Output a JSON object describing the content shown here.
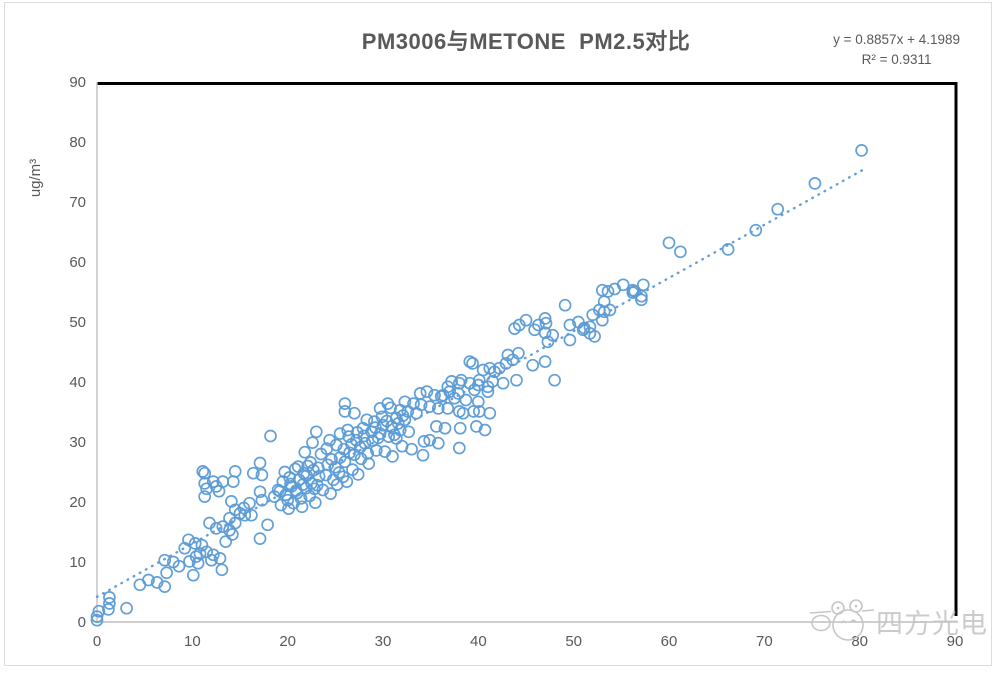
{
  "header": {
    "title": "PM3006与METONE  PM2.5对比",
    "equation": "y = 0.8857x + 4.1989",
    "r_squared": "R² = 0.9311"
  },
  "watermark": {
    "brand_text": "四方光电",
    "logo": "panda-mascot-icon"
  },
  "colors": {
    "marker": "#5B9BD5",
    "trendline": "#5B9BD5",
    "axis_line": "#BFBFBF",
    "tick_label": "#595959",
    "title_text": "#595959",
    "plot_border": "#000000",
    "watermark": "#C6C6C6",
    "outer_border": "#DCDCDC"
  },
  "chart_data": {
    "type": "scatter",
    "title": "PM3006与METONE  PM2.5对比",
    "xlabel": "",
    "ylabel": "ug/m³",
    "xlim": [
      0,
      90
    ],
    "ylim": [
      0,
      90
    ],
    "x_ticks": [
      0,
      10,
      20,
      30,
      40,
      50,
      60,
      70,
      80,
      90
    ],
    "y_ticks": [
      0,
      10,
      20,
      30,
      40,
      50,
      60,
      70,
      80,
      90
    ],
    "grid": false,
    "legend": false,
    "annotation": [
      "y = 0.8857x + 4.1989",
      "R² = 0.9311"
    ],
    "marker": {
      "shape": "open-circle",
      "radius": 5.5
    },
    "trendline": {
      "type": "linear",
      "slope": 0.8857,
      "intercept": 4.1989,
      "r2": 0.9311,
      "style": "dotted",
      "x_range": [
        0,
        80.5
      ]
    },
    "points": [
      [
        0,
        0.3
      ],
      [
        0,
        0.9
      ],
      [
        0.2,
        1.8
      ],
      [
        1.2,
        2.1
      ],
      [
        1.3,
        3.1
      ],
      [
        1.3,
        4.1
      ],
      [
        3.1,
        2.3
      ],
      [
        4.5,
        6.2
      ],
      [
        5.4,
        7
      ],
      [
        6.3,
        6.6
      ],
      [
        7.1,
        5.9
      ],
      [
        7.3,
        8.2
      ],
      [
        7.1,
        10.3
      ],
      [
        8,
        10
      ],
      [
        8.6,
        9.3
      ],
      [
        9.2,
        12.3
      ],
      [
        9.6,
        13.7
      ],
      [
        9.7,
        10.1
      ],
      [
        10.1,
        7.8
      ],
      [
        10.3,
        13.1
      ],
      [
        10.4,
        10.9
      ],
      [
        10.6,
        9.8
      ],
      [
        10.8,
        11.4
      ],
      [
        11,
        12.8
      ],
      [
        11.5,
        11.7
      ],
      [
        12,
        10.3
      ],
      [
        12.2,
        11.2
      ],
      [
        12.9,
        10.6
      ],
      [
        13.1,
        8.7
      ],
      [
        13.5,
        13.4
      ],
      [
        14.2,
        14.6
      ],
      [
        11.1,
        25.1
      ],
      [
        11.3,
        24.8
      ],
      [
        11.3,
        23.1
      ],
      [
        11.3,
        20.9
      ],
      [
        11.5,
        22.2
      ],
      [
        12.2,
        23.4
      ],
      [
        12.5,
        22.6
      ],
      [
        12.8,
        21.8
      ],
      [
        13.2,
        23.4
      ],
      [
        14.3,
        23.4
      ],
      [
        14.5,
        25.1
      ],
      [
        16.4,
        24.8
      ],
      [
        17.1,
        26.5
      ],
      [
        17.3,
        24.5
      ],
      [
        11.8,
        16.5
      ],
      [
        12.5,
        15.6
      ],
      [
        13.2,
        15.9
      ],
      [
        13.9,
        15.3
      ],
      [
        13.9,
        17.3
      ],
      [
        14.1,
        20.1
      ],
      [
        14.5,
        18.7
      ],
      [
        14.5,
        16.5
      ],
      [
        15,
        18.1
      ],
      [
        15.4,
        19
      ],
      [
        15.5,
        17.8
      ],
      [
        16,
        19.8
      ],
      [
        16.2,
        17.8
      ],
      [
        17.1,
        21.7
      ],
      [
        17.3,
        20.3
      ],
      [
        17.1,
        13.9
      ],
      [
        17.9,
        16.2
      ],
      [
        18.2,
        31
      ],
      [
        18.6,
        20.9
      ],
      [
        19,
        22
      ],
      [
        19.3,
        19.5
      ],
      [
        19.5,
        23.4
      ],
      [
        19.8,
        21.2
      ],
      [
        20,
        20.3
      ],
      [
        20.2,
        24.1
      ],
      [
        20.4,
        22.6
      ],
      [
        20.6,
        19.8
      ],
      [
        20.8,
        25.5
      ],
      [
        21,
        21.5
      ],
      [
        21.2,
        23.7
      ],
      [
        21.4,
        20.6
      ],
      [
        21.7,
        24.8
      ],
      [
        21.9,
        22.3
      ],
      [
        22.1,
        26
      ],
      [
        22.3,
        21
      ],
      [
        22.5,
        23.1
      ],
      [
        22.7,
        25.3
      ],
      [
        22.9,
        19.9
      ],
      [
        23.1,
        22.8
      ],
      [
        23.3,
        24.3
      ],
      [
        20.1,
        18.9
      ],
      [
        21.5,
        19.2
      ],
      [
        19.2,
        21.8
      ],
      [
        19.7,
        25
      ],
      [
        20.3,
        23
      ],
      [
        20.9,
        21.9
      ],
      [
        21.1,
        25.9
      ],
      [
        21.6,
        22.9
      ],
      [
        22,
        24.4
      ],
      [
        22.4,
        26.6
      ],
      [
        22.8,
        22.2
      ],
      [
        23.2,
        25.7
      ],
      [
        21.8,
        28.3
      ],
      [
        22.6,
        29.9
      ],
      [
        23,
        31.7
      ],
      [
        23.5,
        28
      ],
      [
        23.7,
        22
      ],
      [
        24,
        24.5
      ],
      [
        24.1,
        28.9
      ],
      [
        24.2,
        26.2
      ],
      [
        24.4,
        30.3
      ],
      [
        24.5,
        21.4
      ],
      [
        24.6,
        27.1
      ],
      [
        24.8,
        23.7
      ],
      [
        25,
        25.8
      ],
      [
        25.1,
        29.5
      ],
      [
        25.2,
        22.9
      ],
      [
        25.4,
        24.9
      ],
      [
        25.5,
        31.4
      ],
      [
        25.5,
        27.4
      ],
      [
        25.8,
        24.2
      ],
      [
        25.9,
        28.8
      ],
      [
        26,
        36.4
      ],
      [
        26,
        35.1
      ],
      [
        26,
        26.7
      ],
      [
        26.2,
        23.4
      ],
      [
        26.3,
        32
      ],
      [
        26.4,
        30.9
      ],
      [
        26.5,
        28.2
      ],
      [
        26.7,
        29.6
      ],
      [
        26.8,
        25.4
      ],
      [
        27,
        34.8
      ],
      [
        27,
        27.9
      ],
      [
        27.2,
        30.3
      ],
      [
        27.3,
        31.6
      ],
      [
        27.4,
        24.6
      ],
      [
        27.6,
        29.1
      ],
      [
        27.7,
        27.2
      ],
      [
        27.9,
        32.3
      ],
      [
        28,
        31
      ],
      [
        28.1,
        29.8
      ],
      [
        28.3,
        33.7
      ],
      [
        28.4,
        28.1
      ],
      [
        28.5,
        26.4
      ],
      [
        28.8,
        31.7
      ],
      [
        28.9,
        30.2
      ],
      [
        29.1,
        33.4
      ],
      [
        29.2,
        32.4
      ],
      [
        29.3,
        28.6
      ],
      [
        29.5,
        30.7
      ],
      [
        29.7,
        35.6
      ],
      [
        29.7,
        31.4
      ],
      [
        29.9,
        34.2
      ],
      [
        30,
        32.8
      ],
      [
        30.2,
        28.4
      ],
      [
        30.4,
        33.5
      ],
      [
        30.5,
        36.4
      ],
      [
        30.6,
        30.9
      ],
      [
        30.8,
        35.7
      ],
      [
        30.9,
        32.6
      ],
      [
        31,
        27.6
      ],
      [
        31.2,
        31.2
      ],
      [
        31.4,
        34
      ],
      [
        31.4,
        30.6
      ],
      [
        31.6,
        33.1
      ],
      [
        31.8,
        35.3
      ],
      [
        31.8,
        32
      ],
      [
        32,
        29.3
      ],
      [
        32.1,
        34.4
      ],
      [
        32.3,
        36.7
      ],
      [
        32.3,
        33.7
      ],
      [
        32.6,
        35.1
      ],
      [
        32.7,
        31.7
      ],
      [
        33,
        28.8
      ],
      [
        33.2,
        36.4
      ],
      [
        33.5,
        34.8
      ],
      [
        33.9,
        38.1
      ],
      [
        34,
        36.2
      ],
      [
        34.3,
        30.1
      ],
      [
        34.6,
        38.4
      ],
      [
        34.9,
        35.9
      ],
      [
        34.9,
        30.3
      ],
      [
        35.4,
        37.8
      ],
      [
        35.6,
        32.6
      ],
      [
        35.8,
        35.6
      ],
      [
        35.8,
        29.8
      ],
      [
        36.1,
        37.6
      ],
      [
        36.5,
        32.3
      ],
      [
        36.3,
        37.8
      ],
      [
        34.2,
        27.8
      ],
      [
        36.8,
        39.2
      ],
      [
        36.8,
        35.6
      ],
      [
        37,
        38.4
      ],
      [
        37.2,
        40.1
      ],
      [
        37.5,
        37.3
      ],
      [
        37.9,
        38.1
      ],
      [
        38,
        39.8
      ],
      [
        38,
        35.1
      ],
      [
        38,
        29
      ],
      [
        38.1,
        32.3
      ],
      [
        38.2,
        40.3
      ],
      [
        38.4,
        34.8
      ],
      [
        38.7,
        37
      ],
      [
        39.1,
        43.4
      ],
      [
        39.1,
        39.8
      ],
      [
        39.4,
        43.1
      ],
      [
        39.5,
        35.1
      ],
      [
        39.6,
        38.7
      ],
      [
        39.8,
        32.6
      ],
      [
        40,
        39.5
      ],
      [
        40,
        36.7
      ],
      [
        40.1,
        40.3
      ],
      [
        40.1,
        35.1
      ],
      [
        40.5,
        42
      ],
      [
        40.7,
        32
      ],
      [
        41,
        39.2
      ],
      [
        41,
        38.4
      ],
      [
        41.2,
        42.3
      ],
      [
        41.2,
        34.8
      ],
      [
        41.5,
        40.1
      ],
      [
        41.7,
        41.7
      ],
      [
        42.2,
        42.3
      ],
      [
        42.6,
        39.8
      ],
      [
        42.9,
        43.1
      ],
      [
        43.1,
        44.5
      ],
      [
        43.6,
        43.7
      ],
      [
        43.8,
        48.9
      ],
      [
        44,
        40.3
      ],
      [
        44.2,
        44.8
      ],
      [
        44.3,
        49.5
      ],
      [
        45,
        50.3
      ],
      [
        45.7,
        42.8
      ],
      [
        45.9,
        48.7
      ],
      [
        46.3,
        49.5
      ],
      [
        47,
        50.6
      ],
      [
        47,
        48.2
      ],
      [
        47,
        43.4
      ],
      [
        47.1,
        49.8
      ],
      [
        47.3,
        46.7
      ],
      [
        47.8,
        47.8
      ],
      [
        48,
        40.3
      ],
      [
        49.1,
        52.8
      ],
      [
        49.6,
        49.5
      ],
      [
        49.6,
        47
      ],
      [
        50.5,
        50
      ],
      [
        51,
        48.7
      ],
      [
        51.1,
        49
      ],
      [
        51.7,
        49.2
      ],
      [
        51.7,
        48.1
      ],
      [
        52,
        51.2
      ],
      [
        52.2,
        47.6
      ],
      [
        52.7,
        52
      ],
      [
        53,
        55.3
      ],
      [
        53,
        50.3
      ],
      [
        53.2,
        53.4
      ],
      [
        53.2,
        51.7
      ],
      [
        53.6,
        55.1
      ],
      [
        53.8,
        52
      ],
      [
        54.3,
        55.5
      ],
      [
        55.2,
        56.2
      ],
      [
        56.2,
        55.3
      ],
      [
        56.2,
        54.9
      ],
      [
        56.4,
        55.1
      ],
      [
        57.1,
        54.3
      ],
      [
        57.1,
        53.7
      ],
      [
        57.3,
        56.2
      ],
      [
        60,
        63.2
      ],
      [
        61.2,
        61.7
      ],
      [
        66.2,
        62.1
      ],
      [
        69.1,
        65.3
      ],
      [
        71.4,
        68.8
      ],
      [
        75.3,
        73.1
      ],
      [
        80.2,
        78.6
      ]
    ]
  }
}
